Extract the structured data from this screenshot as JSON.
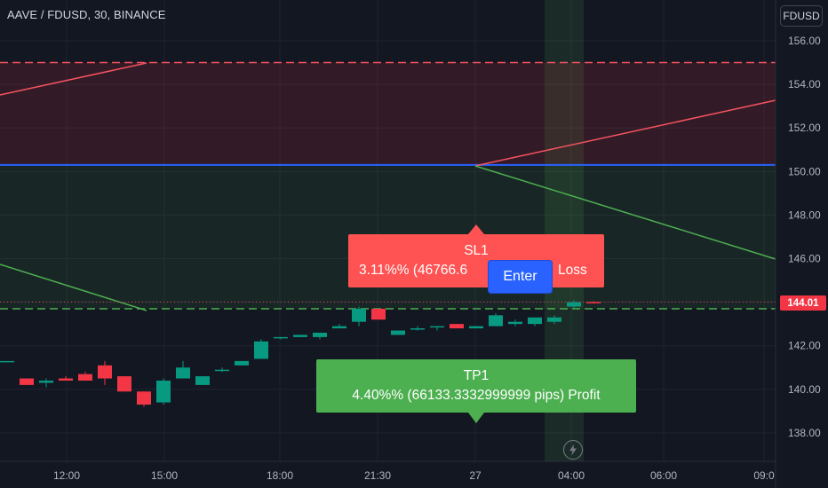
{
  "header": {
    "symbol_label": "AAVE / FDUSD, 30, BINANCE",
    "currency_button": "FDUSD"
  },
  "chart_data": {
    "type": "candlestick",
    "symbol": "AAVE / FDUSD",
    "interval": "30",
    "exchange": "BINANCE",
    "y_ticks": [
      156.0,
      154.0,
      152.0,
      150.0,
      148.0,
      146.0,
      144.0,
      142.0,
      140.0,
      138.0
    ],
    "y_tick_labels": [
      "156.00",
      "154.00",
      "152.00",
      "150.00",
      "148.00",
      "146.00",
      "",
      "142.00",
      "140.00",
      "138.00"
    ],
    "x_tick_labels": [
      "12:00",
      "15:00",
      "18:00",
      "21:30",
      "27",
      "04:00",
      "06:00",
      "09:0"
    ],
    "ylim": [
      136.8,
      157.2
    ],
    "last_price": "144.01",
    "last_price_value": 144.01,
    "levels": {
      "stop_loss": 155.0,
      "entry": 150.3,
      "take_profit": 143.7
    },
    "candles": [
      {
        "o": 141.3,
        "h": 141.3,
        "l": 141.3,
        "c": 141.3
      },
      {
        "o": 140.5,
        "h": 140.5,
        "l": 140.2,
        "c": 140.2
      },
      {
        "o": 140.3,
        "h": 140.5,
        "l": 140.1,
        "c": 140.4
      },
      {
        "o": 140.5,
        "h": 140.6,
        "l": 140.4,
        "c": 140.4
      },
      {
        "o": 140.7,
        "h": 140.8,
        "l": 140.4,
        "c": 140.4
      },
      {
        "o": 141.1,
        "h": 141.3,
        "l": 140.2,
        "c": 140.5
      },
      {
        "o": 140.6,
        "h": 140.6,
        "l": 139.9,
        "c": 139.9
      },
      {
        "o": 139.9,
        "h": 139.9,
        "l": 139.2,
        "c": 139.3
      },
      {
        "o": 139.4,
        "h": 140.5,
        "l": 139.3,
        "c": 140.4
      },
      {
        "o": 140.5,
        "h": 141.3,
        "l": 140.5,
        "c": 141.0
      },
      {
        "o": 140.2,
        "h": 140.6,
        "l": 140.2,
        "c": 140.6
      },
      {
        "o": 140.9,
        "h": 141.0,
        "l": 140.8,
        "c": 140.9
      },
      {
        "o": 141.1,
        "h": 141.3,
        "l": 141.1,
        "c": 141.3
      },
      {
        "o": 141.4,
        "h": 142.3,
        "l": 141.4,
        "c": 142.2
      },
      {
        "o": 142.4,
        "h": 142.4,
        "l": 142.3,
        "c": 142.4
      },
      {
        "o": 142.4,
        "h": 142.5,
        "l": 142.4,
        "c": 142.5
      },
      {
        "o": 142.4,
        "h": 142.6,
        "l": 142.3,
        "c": 142.6
      },
      {
        "o": 142.8,
        "h": 143.0,
        "l": 142.8,
        "c": 142.9
      },
      {
        "o": 143.1,
        "h": 143.8,
        "l": 142.9,
        "c": 143.7
      },
      {
        "o": 143.7,
        "h": 143.7,
        "l": 143.2,
        "c": 143.2
      },
      {
        "o": 142.5,
        "h": 142.7,
        "l": 142.5,
        "c": 142.7
      },
      {
        "o": 142.8,
        "h": 142.9,
        "l": 142.7,
        "c": 142.8
      },
      {
        "o": 142.9,
        "h": 142.9,
        "l": 142.7,
        "c": 142.9
      },
      {
        "o": 143.0,
        "h": 143.0,
        "l": 142.8,
        "c": 142.8
      },
      {
        "o": 142.8,
        "h": 142.9,
        "l": 142.8,
        "c": 142.9
      },
      {
        "o": 142.9,
        "h": 143.5,
        "l": 142.9,
        "c": 143.4
      },
      {
        "o": 143.0,
        "h": 143.2,
        "l": 142.9,
        "c": 143.1
      },
      {
        "o": 143.0,
        "h": 143.3,
        "l": 142.9,
        "c": 143.3
      },
      {
        "o": 143.1,
        "h": 143.4,
        "l": 143.0,
        "c": 143.3
      },
      {
        "o": 143.8,
        "h": 144.1,
        "l": 143.7,
        "c": 144.0
      },
      {
        "o": 144.01,
        "h": 144.05,
        "l": 143.95,
        "c": 143.98
      }
    ]
  },
  "trade": {
    "stop_loss": {
      "title": "SL1",
      "detail_left": "3.11%% (46766.6",
      "detail_right": "Loss"
    },
    "take_profit": {
      "title": "TP1",
      "detail": "4.40%% (66133.3332999999 pips) Profit"
    },
    "entry_label": "Enter"
  },
  "icons": {
    "replay": "lightning-icon"
  },
  "colors": {
    "background": "#131722",
    "bull": "#089981",
    "bear": "#f23645",
    "stop_loss": "#ff5252",
    "take_profit": "#4caf50",
    "entry": "#2962ff"
  }
}
